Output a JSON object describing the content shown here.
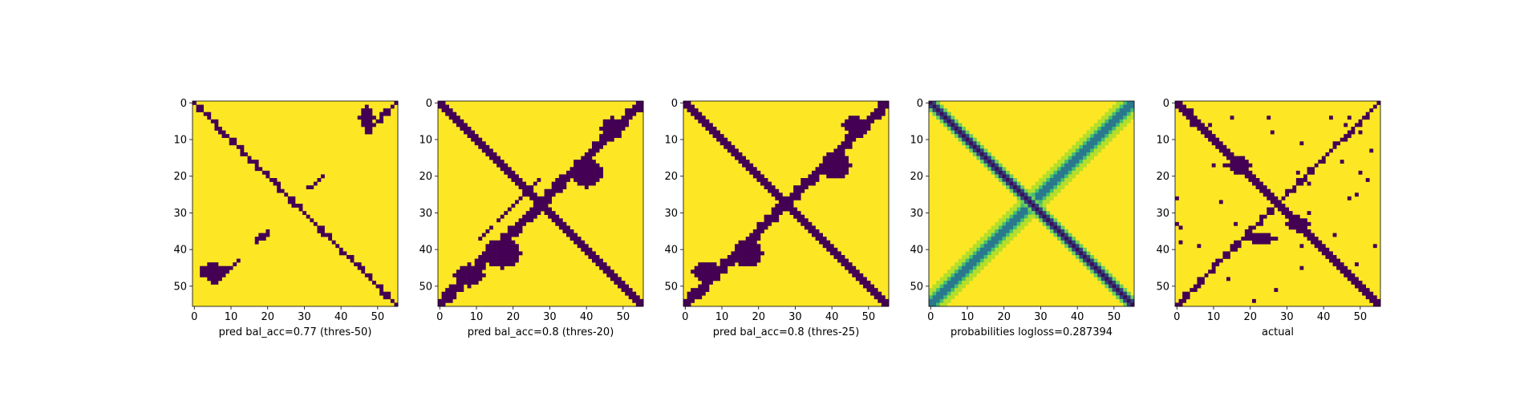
{
  "colors": {
    "dark": "#440154",
    "light": "#fde725",
    "mid": [
      "#21918c",
      "#5ec962",
      "#3b528b",
      "#90d743"
    ]
  },
  "chart_data": [
    {
      "type": "heatmap",
      "title": "",
      "xlabel": "pred bal_acc=0.77 (thres-50)",
      "ylabel": "",
      "xlim": [
        0,
        55
      ],
      "ylim": [
        0,
        55
      ],
      "xticks": [
        "0",
        "10",
        "20",
        "30",
        "40",
        "50"
      ],
      "yticks": [
        "0",
        "10",
        "20",
        "30",
        "40",
        "50"
      ],
      "values": "binary 0/1 contact map: main diagonal band (thin), anti-diagonal contacts near (45-50,0-8),(20-24,26-30),(34-37,38-42),(43-50,0-10); mostly 1 elsewhere"
    },
    {
      "type": "heatmap",
      "title": "",
      "xlabel": "pred bal_acc=0.8 (thres-20)",
      "ylabel": "",
      "xlim": [
        0,
        55
      ],
      "ylim": [
        0,
        55
      ],
      "xticks": [
        "0",
        "10",
        "20",
        "30",
        "40",
        "50"
      ],
      "yticks": [
        "0",
        "10",
        "20",
        "30",
        "40",
        "50"
      ],
      "values": "binary 0/1 contact map: thick main diagonal, thick anti-diagonal band with blobs"
    },
    {
      "type": "heatmap",
      "title": "",
      "xlabel": "pred bal_acc=0.8 (thres-25)",
      "ylabel": "",
      "xlim": [
        0,
        55
      ],
      "ylim": [
        0,
        55
      ],
      "xticks": [
        "0",
        "10",
        "20",
        "30",
        "40",
        "50"
      ],
      "yticks": [
        "0",
        "10",
        "20",
        "30",
        "40",
        "50"
      ],
      "values": "binary 0/1 contact map: thick main diagonal, anti-diagonal band with blobs"
    },
    {
      "type": "heatmap",
      "title": "",
      "xlabel": "probabilities logloss=0.287394",
      "ylabel": "",
      "xlim": [
        0,
        55
      ],
      "ylim": [
        0,
        55
      ],
      "xticks": [
        "0",
        "10",
        "20",
        "30",
        "40",
        "50"
      ],
      "yticks": [
        "0",
        "10",
        "20",
        "30",
        "40",
        "50"
      ],
      "values": "continuous probability map: dark main diagonal, blue-green anti-diagonal gradients"
    },
    {
      "type": "heatmap",
      "title": "",
      "xlabel": "actual",
      "ylabel": "",
      "xlim": [
        0,
        55
      ],
      "ylim": [
        0,
        55
      ],
      "xticks": [
        "0",
        "10",
        "20",
        "30",
        "40",
        "50"
      ],
      "yticks": [
        "0",
        "10",
        "20",
        "30",
        "40",
        "50"
      ],
      "values": "binary 0/1 ground-truth contact map: main diagonal with branches, anti-diagonal contacts"
    }
  ]
}
